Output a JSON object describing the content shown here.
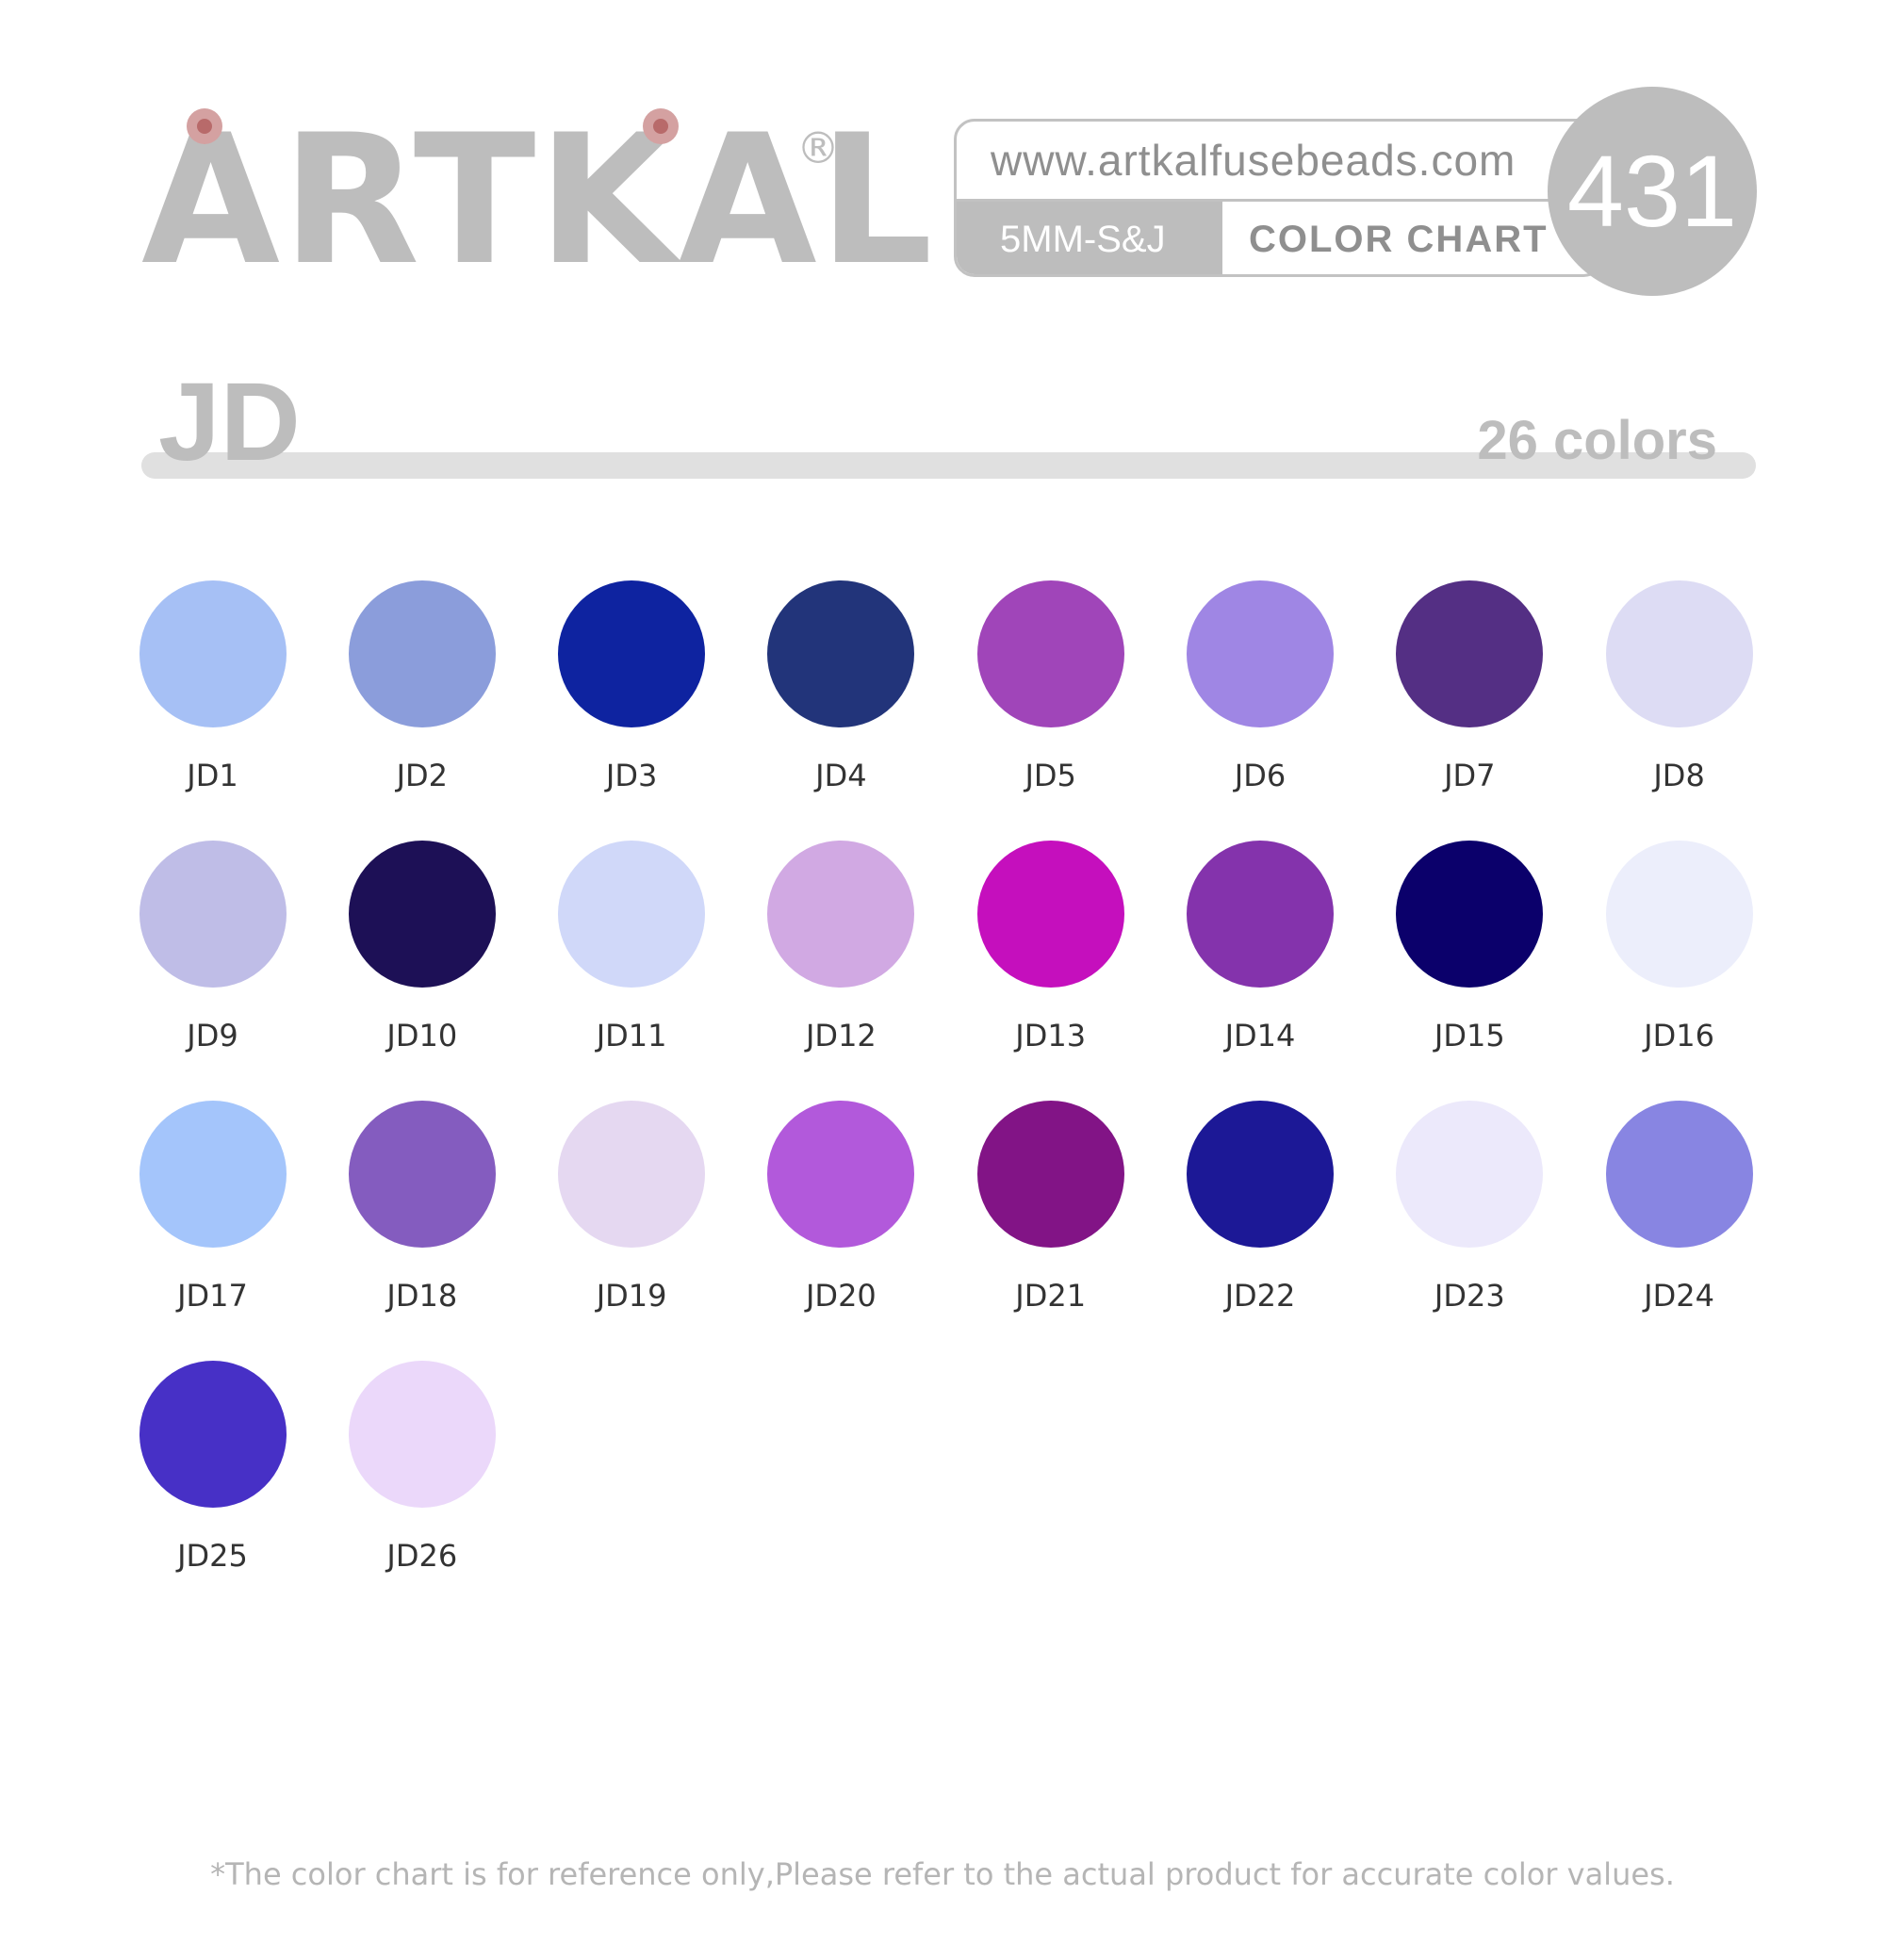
{
  "brand": {
    "logo_text": "ARTKAL",
    "registered_mark": "®"
  },
  "header": {
    "website": "www.artkalfusebeads.com",
    "size_label": "5MM-S&J",
    "chart_label": "COLOR CHART",
    "total_count": "431"
  },
  "series": {
    "name": "JD",
    "count_label": "26 colors"
  },
  "colors": [
    {
      "code": "JD1",
      "hex": "#a6c0f5"
    },
    {
      "code": "JD2",
      "hex": "#8b9ddb"
    },
    {
      "code": "JD3",
      "hex": "#0e23a0"
    },
    {
      "code": "JD4",
      "hex": "#22347a"
    },
    {
      "code": "JD5",
      "hex": "#a045b9"
    },
    {
      "code": "JD6",
      "hex": "#9f86e4"
    },
    {
      "code": "JD7",
      "hex": "#542f84"
    },
    {
      "code": "JD8",
      "hex": "#dddcf4"
    },
    {
      "code": "JD9",
      "hex": "#bfbde7"
    },
    {
      "code": "JD10",
      "hex": "#1d1056"
    },
    {
      "code": "JD11",
      "hex": "#d0d8f9"
    },
    {
      "code": "JD12",
      "hex": "#d1a9e3"
    },
    {
      "code": "JD13",
      "hex": "#c50fbd"
    },
    {
      "code": "JD14",
      "hex": "#8433ac"
    },
    {
      "code": "JD15",
      "hex": "#0b006b"
    },
    {
      "code": "JD16",
      "hex": "#eceefb"
    },
    {
      "code": "JD17",
      "hex": "#a4c5fb"
    },
    {
      "code": "JD18",
      "hex": "#845cbf"
    },
    {
      "code": "JD19",
      "hex": "#e5d8f1"
    },
    {
      "code": "JD20",
      "hex": "#b259db"
    },
    {
      "code": "JD21",
      "hex": "#821486"
    },
    {
      "code": "JD22",
      "hex": "#1c1896"
    },
    {
      "code": "JD23",
      "hex": "#ece9fb"
    },
    {
      "code": "JD24",
      "hex": "#8885e2"
    },
    {
      "code": "JD25",
      "hex": "#4730c6"
    },
    {
      "code": "JD26",
      "hex": "#ebd8fa"
    }
  ],
  "footer": {
    "disclaimer": "*The color chart is for reference only,Please refer to the actual product for accurate color values."
  },
  "theme": {
    "primary_gray": "#bdbdbd",
    "text_gray": "#8f8f8f",
    "code_text": "#333333"
  }
}
